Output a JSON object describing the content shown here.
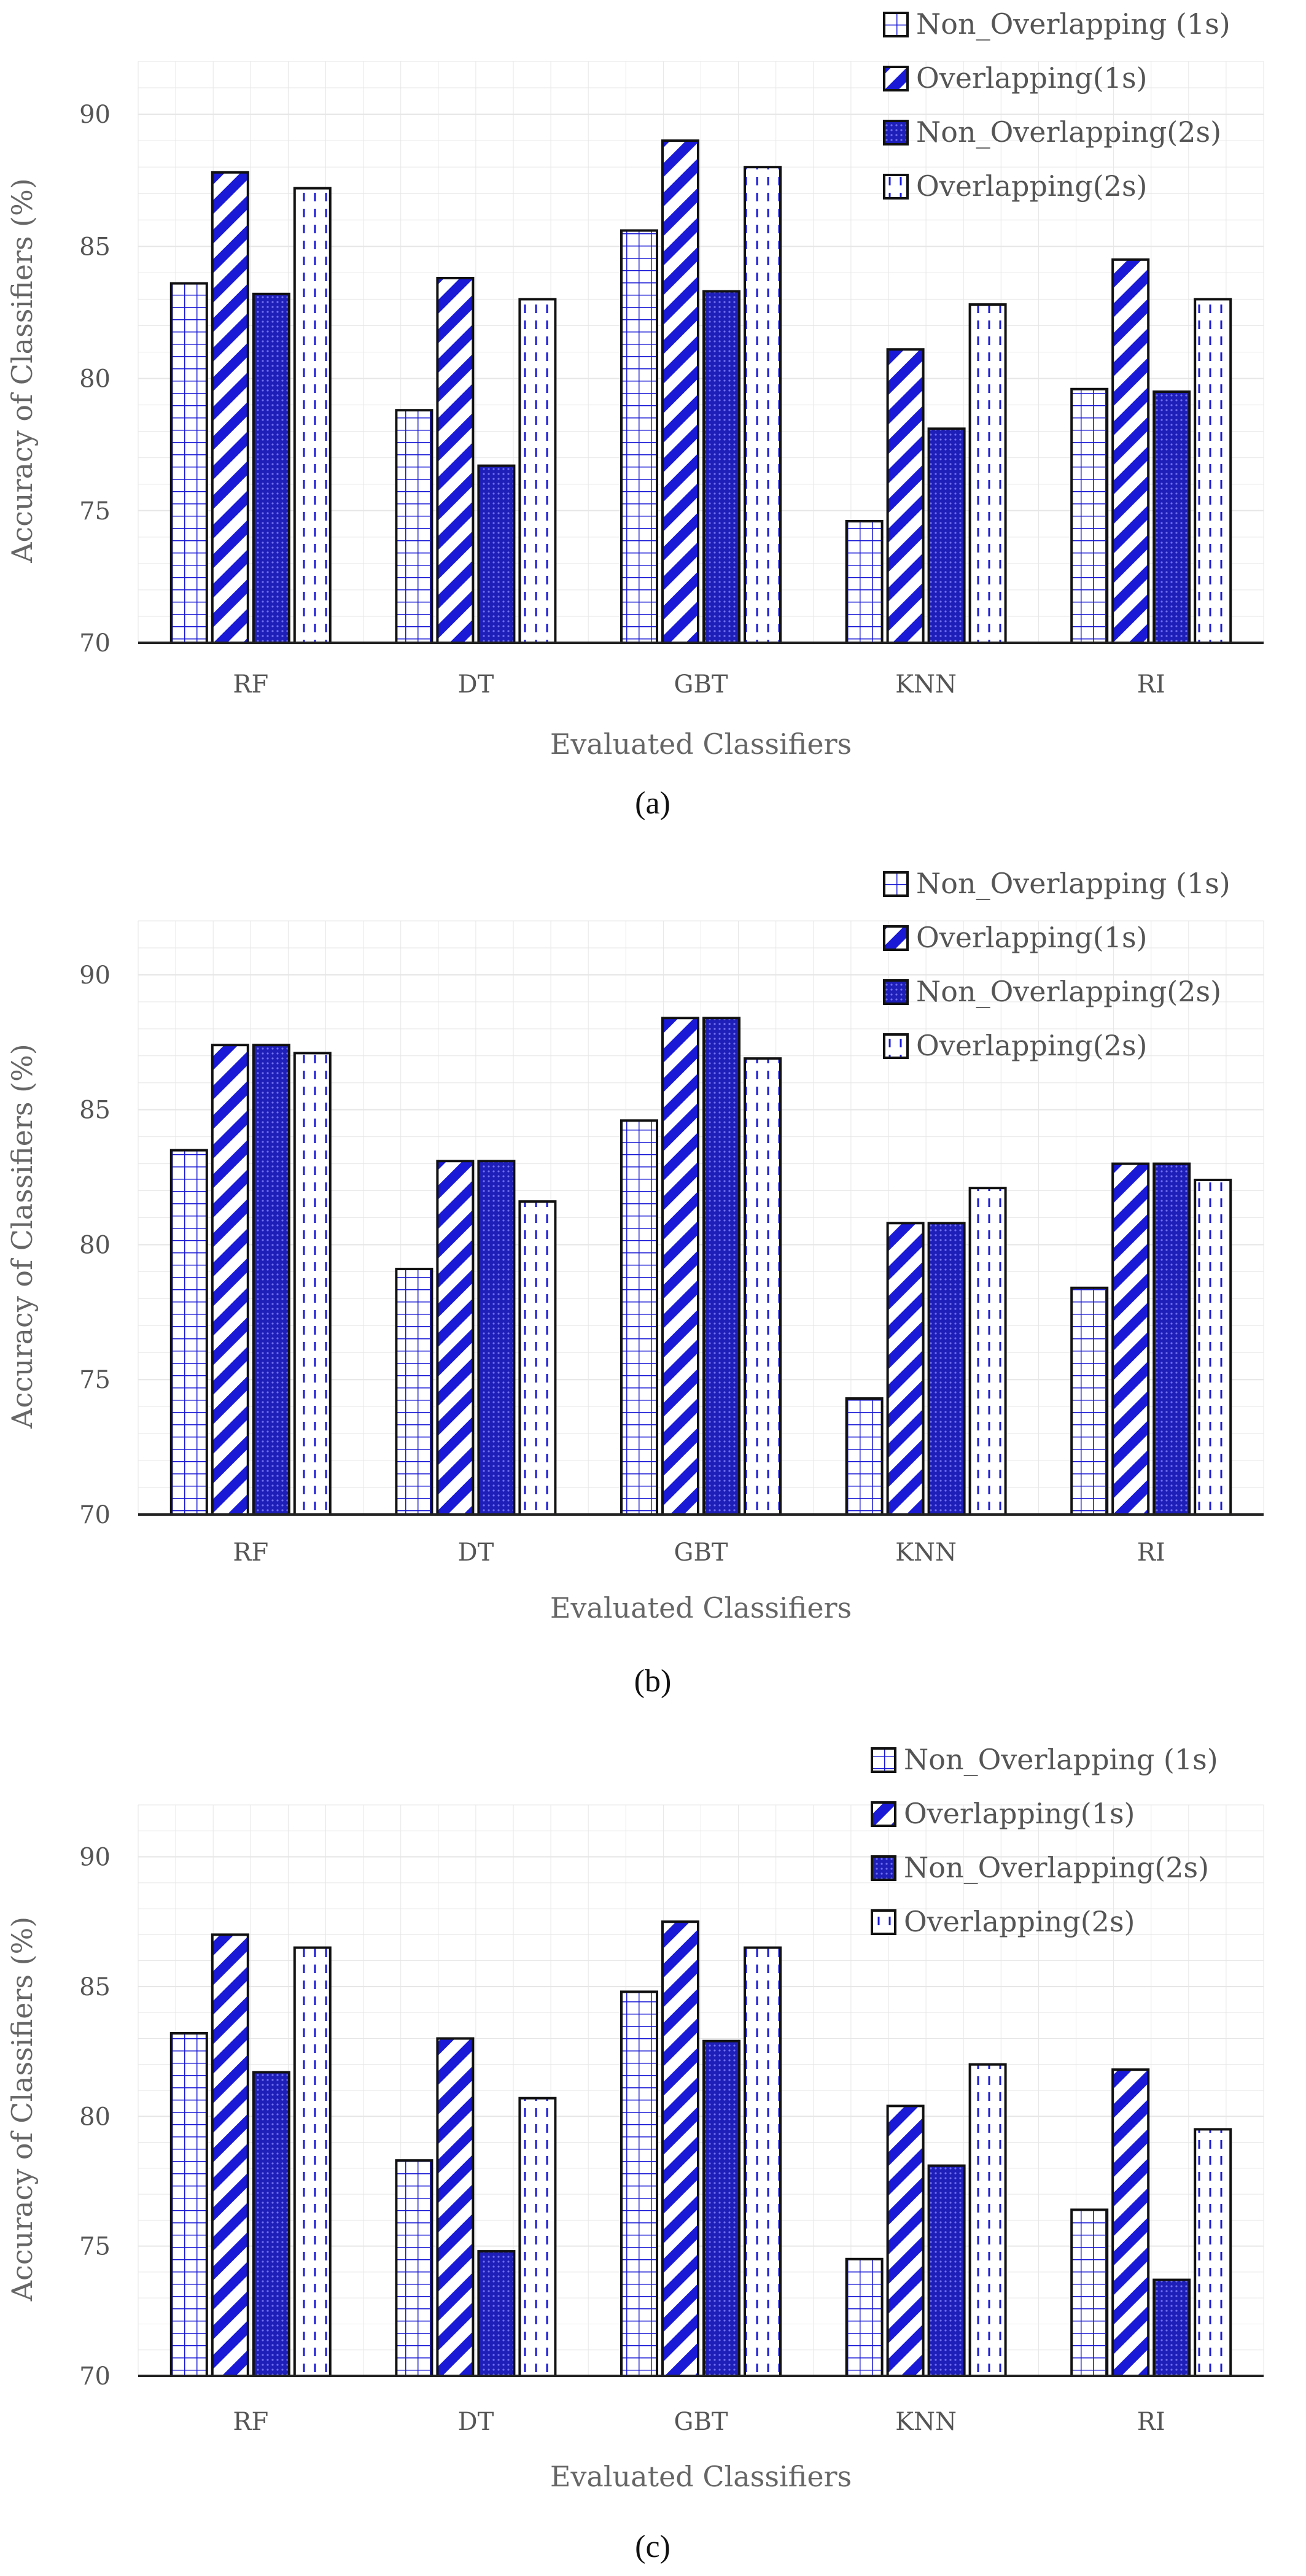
{
  "chart_data": [
    {
      "type": "bar",
      "panel": "(a)",
      "xlabel": "Evaluated Classifiers",
      "ylabel": "Accuracy of Classifiers (%)",
      "ylim": [
        70,
        92
      ],
      "yticks": [
        70,
        75,
        80,
        85,
        90
      ],
      "grid": true,
      "legend_position": "top-right",
      "categories": [
        "RF",
        "DT",
        "GBT",
        "KNN",
        "RI"
      ],
      "series": [
        {
          "name": "Non_Overlapping (1s)",
          "pattern": "grid",
          "values": [
            83.6,
            78.8,
            85.6,
            74.6,
            79.6
          ]
        },
        {
          "name": "Overlapping(1s)",
          "pattern": "diag",
          "values": [
            87.8,
            83.8,
            89.0,
            81.1,
            84.5
          ]
        },
        {
          "name": "Non_Overlapping(2s)",
          "pattern": "dots",
          "values": [
            83.2,
            76.7,
            83.3,
            78.1,
            79.5
          ]
        },
        {
          "name": "Overlapping(2s)",
          "pattern": "dash",
          "values": [
            87.2,
            83.0,
            88.0,
            82.8,
            83.0
          ]
        }
      ]
    },
    {
      "type": "bar",
      "panel": "(b)",
      "xlabel": "Evaluated Classifiers",
      "ylabel": "Accuracy of Classifiers (%)",
      "ylim": [
        70,
        92
      ],
      "yticks": [
        70,
        75,
        80,
        85,
        90
      ],
      "grid": true,
      "legend_position": "top-right",
      "categories": [
        "RF",
        "DT",
        "GBT",
        "KNN",
        "RI"
      ],
      "series": [
        {
          "name": "Non_Overlapping (1s)",
          "pattern": "grid",
          "values": [
            83.5,
            79.1,
            84.6,
            74.3,
            78.4
          ]
        },
        {
          "name": "Overlapping(1s)",
          "pattern": "diag",
          "values": [
            87.4,
            83.1,
            88.4,
            80.8,
            83.0
          ]
        },
        {
          "name": "Non_Overlapping(2s)",
          "pattern": "dots",
          "values": [
            87.4,
            83.1,
            88.4,
            80.8,
            83.0
          ]
        },
        {
          "name": "Overlapping(2s)",
          "pattern": "dash",
          "values": [
            87.1,
            81.6,
            86.9,
            82.1,
            82.4
          ]
        }
      ]
    },
    {
      "type": "bar",
      "panel": "(c)",
      "xlabel": "Evaluated Classifiers",
      "ylabel": "Accuracy of Classifiers (%)",
      "ylim": [
        70,
        92
      ],
      "yticks": [
        70,
        75,
        80,
        85,
        90
      ],
      "grid": true,
      "legend_position": "top-right",
      "categories": [
        "RF",
        "DT",
        "GBT",
        "KNN",
        "RI"
      ],
      "series": [
        {
          "name": "Non_Overlapping (1s)",
          "pattern": "grid",
          "values": [
            83.2,
            78.3,
            84.8,
            74.5,
            76.4
          ]
        },
        {
          "name": "Overlapping(1s)",
          "pattern": "diag",
          "values": [
            87.0,
            83.0,
            87.5,
            80.4,
            81.8
          ]
        },
        {
          "name": "Non_Overlapping(2s)",
          "pattern": "dots",
          "values": [
            81.7,
            74.8,
            82.9,
            78.1,
            73.7
          ]
        },
        {
          "name": "Overlapping(2s)",
          "pattern": "dash",
          "values": [
            86.5,
            80.7,
            86.5,
            82.0,
            79.5
          ]
        }
      ]
    }
  ],
  "colors": {
    "bar_outline": "#111111",
    "hatch_blue": "#1a1ad6",
    "fill_dark_blue": "#1e1eb8",
    "grid": "#e6e6e6",
    "axis": "#222222"
  }
}
